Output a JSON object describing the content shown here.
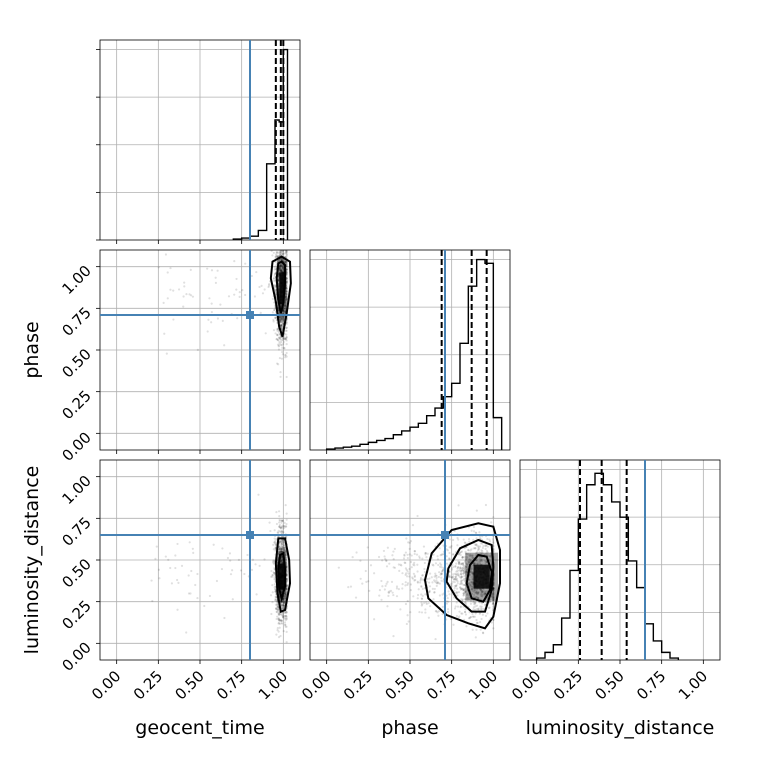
{
  "chart_data": {
    "type": "corner",
    "parameters": [
      "geocent_time",
      "phase",
      "luminosity_distance"
    ],
    "ticks": [
      "0.00",
      "0.25",
      "0.50",
      "0.75",
      "1.00"
    ],
    "axis_range": [
      -0.1,
      1.1
    ],
    "truths": {
      "geocent_time": 0.8,
      "phase": 0.71,
      "luminosity_distance": 0.65
    },
    "truth_color": "#4682b4",
    "grid": true,
    "histograms": [
      {
        "parameter": "geocent_time",
        "bin_edges": [
          0.7,
          0.75,
          0.8,
          0.85,
          0.9,
          0.95,
          0.975,
          1.0,
          1.025
        ],
        "counts": [
          0.005,
          0.01,
          0.02,
          0.05,
          0.4,
          0.63,
          0.62,
          1.0
        ],
        "quantiles": [
          0.955,
          0.985,
          1.0
        ]
      },
      {
        "parameter": "phase",
        "bin_edges": [
          0.0,
          0.05,
          0.1,
          0.15,
          0.2,
          0.25,
          0.3,
          0.35,
          0.4,
          0.45,
          0.5,
          0.55,
          0.6,
          0.65,
          0.7,
          0.75,
          0.8,
          0.85,
          0.9,
          0.95,
          1.0,
          1.05
        ],
        "counts": [
          0.005,
          0.01,
          0.015,
          0.02,
          0.03,
          0.04,
          0.05,
          0.06,
          0.08,
          0.1,
          0.12,
          0.14,
          0.18,
          0.22,
          0.28,
          0.35,
          0.56,
          0.86,
          1.0,
          0.98,
          0.17
        ],
        "quantiles": [
          0.69,
          0.87,
          0.96
        ]
      },
      {
        "parameter": "luminosity_distance",
        "bin_edges": [
          0.0,
          0.05,
          0.1,
          0.15,
          0.2,
          0.25,
          0.3,
          0.35,
          0.4,
          0.45,
          0.5,
          0.55,
          0.6,
          0.65,
          0.7,
          0.75,
          0.8,
          0.85
        ],
        "counts": [
          0.01,
          0.04,
          0.08,
          0.22,
          0.47,
          0.74,
          0.92,
          0.98,
          0.92,
          0.83,
          0.75,
          0.52,
          0.38,
          0.19,
          0.1,
          0.04,
          0.01
        ],
        "quantiles": [
          0.26,
          0.39,
          0.54
        ]
      }
    ],
    "pair_plots": [
      {
        "x": "geocent_time",
        "y": "phase",
        "center": [
          0.99,
          0.87
        ],
        "spread": [
          0.02,
          0.16
        ],
        "contours": [
          [
            [
              0.97,
              1.02
            ],
            [
              0.99,
              1.03
            ],
            [
              1.01,
              1.01
            ],
            [
              1.01,
              0.9
            ],
            [
              1.0,
              0.78
            ],
            [
              0.985,
              0.72
            ],
            [
              0.97,
              0.8
            ],
            [
              0.96,
              0.93
            ]
          ],
          [
            [
              0.935,
              1.03
            ],
            [
              0.99,
              1.06
            ],
            [
              1.04,
              1.03
            ],
            [
              1.045,
              0.9
            ],
            [
              1.02,
              0.72
            ],
            [
              0.995,
              0.58
            ],
            [
              0.975,
              0.64
            ],
            [
              0.955,
              0.79
            ],
            [
              0.925,
              0.93
            ]
          ]
        ]
      },
      {
        "x": "geocent_time",
        "y": "luminosity_distance",
        "center": [
          0.99,
          0.4
        ],
        "spread": [
          0.02,
          0.13
        ],
        "contours": [
          [
            [
              0.98,
              0.53
            ],
            [
              1.0,
              0.54
            ],
            [
              1.01,
              0.45
            ],
            [
              1.01,
              0.34
            ],
            [
              0.99,
              0.27
            ],
            [
              0.975,
              0.33
            ],
            [
              0.97,
              0.45
            ]
          ],
          [
            [
              0.97,
              0.63
            ],
            [
              1.01,
              0.63
            ],
            [
              1.035,
              0.5
            ],
            [
              1.04,
              0.36
            ],
            [
              1.01,
              0.2
            ],
            [
              0.985,
              0.19
            ],
            [
              0.965,
              0.3
            ],
            [
              0.955,
              0.48
            ]
          ]
        ]
      },
      {
        "x": "phase",
        "y": "luminosity_distance",
        "center": [
          0.93,
          0.4
        ],
        "spread": [
          0.07,
          0.12
        ],
        "contours": [
          [
            [
              0.86,
              0.47
            ],
            [
              0.91,
              0.53
            ],
            [
              0.96,
              0.52
            ],
            [
              0.99,
              0.43
            ],
            [
              0.98,
              0.32
            ],
            [
              0.94,
              0.25
            ],
            [
              0.87,
              0.27
            ],
            [
              0.84,
              0.36
            ]
          ],
          [
            [
              0.73,
              0.45
            ],
            [
              0.8,
              0.57
            ],
            [
              0.91,
              0.62
            ],
            [
              0.99,
              0.59
            ],
            [
              1.0,
              0.46
            ],
            [
              0.99,
              0.32
            ],
            [
              0.95,
              0.19
            ],
            [
              0.87,
              0.19
            ],
            [
              0.78,
              0.27
            ],
            [
              0.72,
              0.37
            ]
          ],
          [
            [
              0.59,
              0.38
            ],
            [
              0.63,
              0.54
            ],
            [
              0.75,
              0.68
            ],
            [
              0.91,
              0.72
            ],
            [
              1.0,
              0.7
            ],
            [
              1.04,
              0.56
            ],
            [
              1.04,
              0.36
            ],
            [
              1.0,
              0.16
            ],
            [
              0.95,
              0.09
            ],
            [
              0.85,
              0.12
            ],
            [
              0.72,
              0.17
            ],
            [
              0.61,
              0.27
            ]
          ]
        ]
      }
    ]
  }
}
